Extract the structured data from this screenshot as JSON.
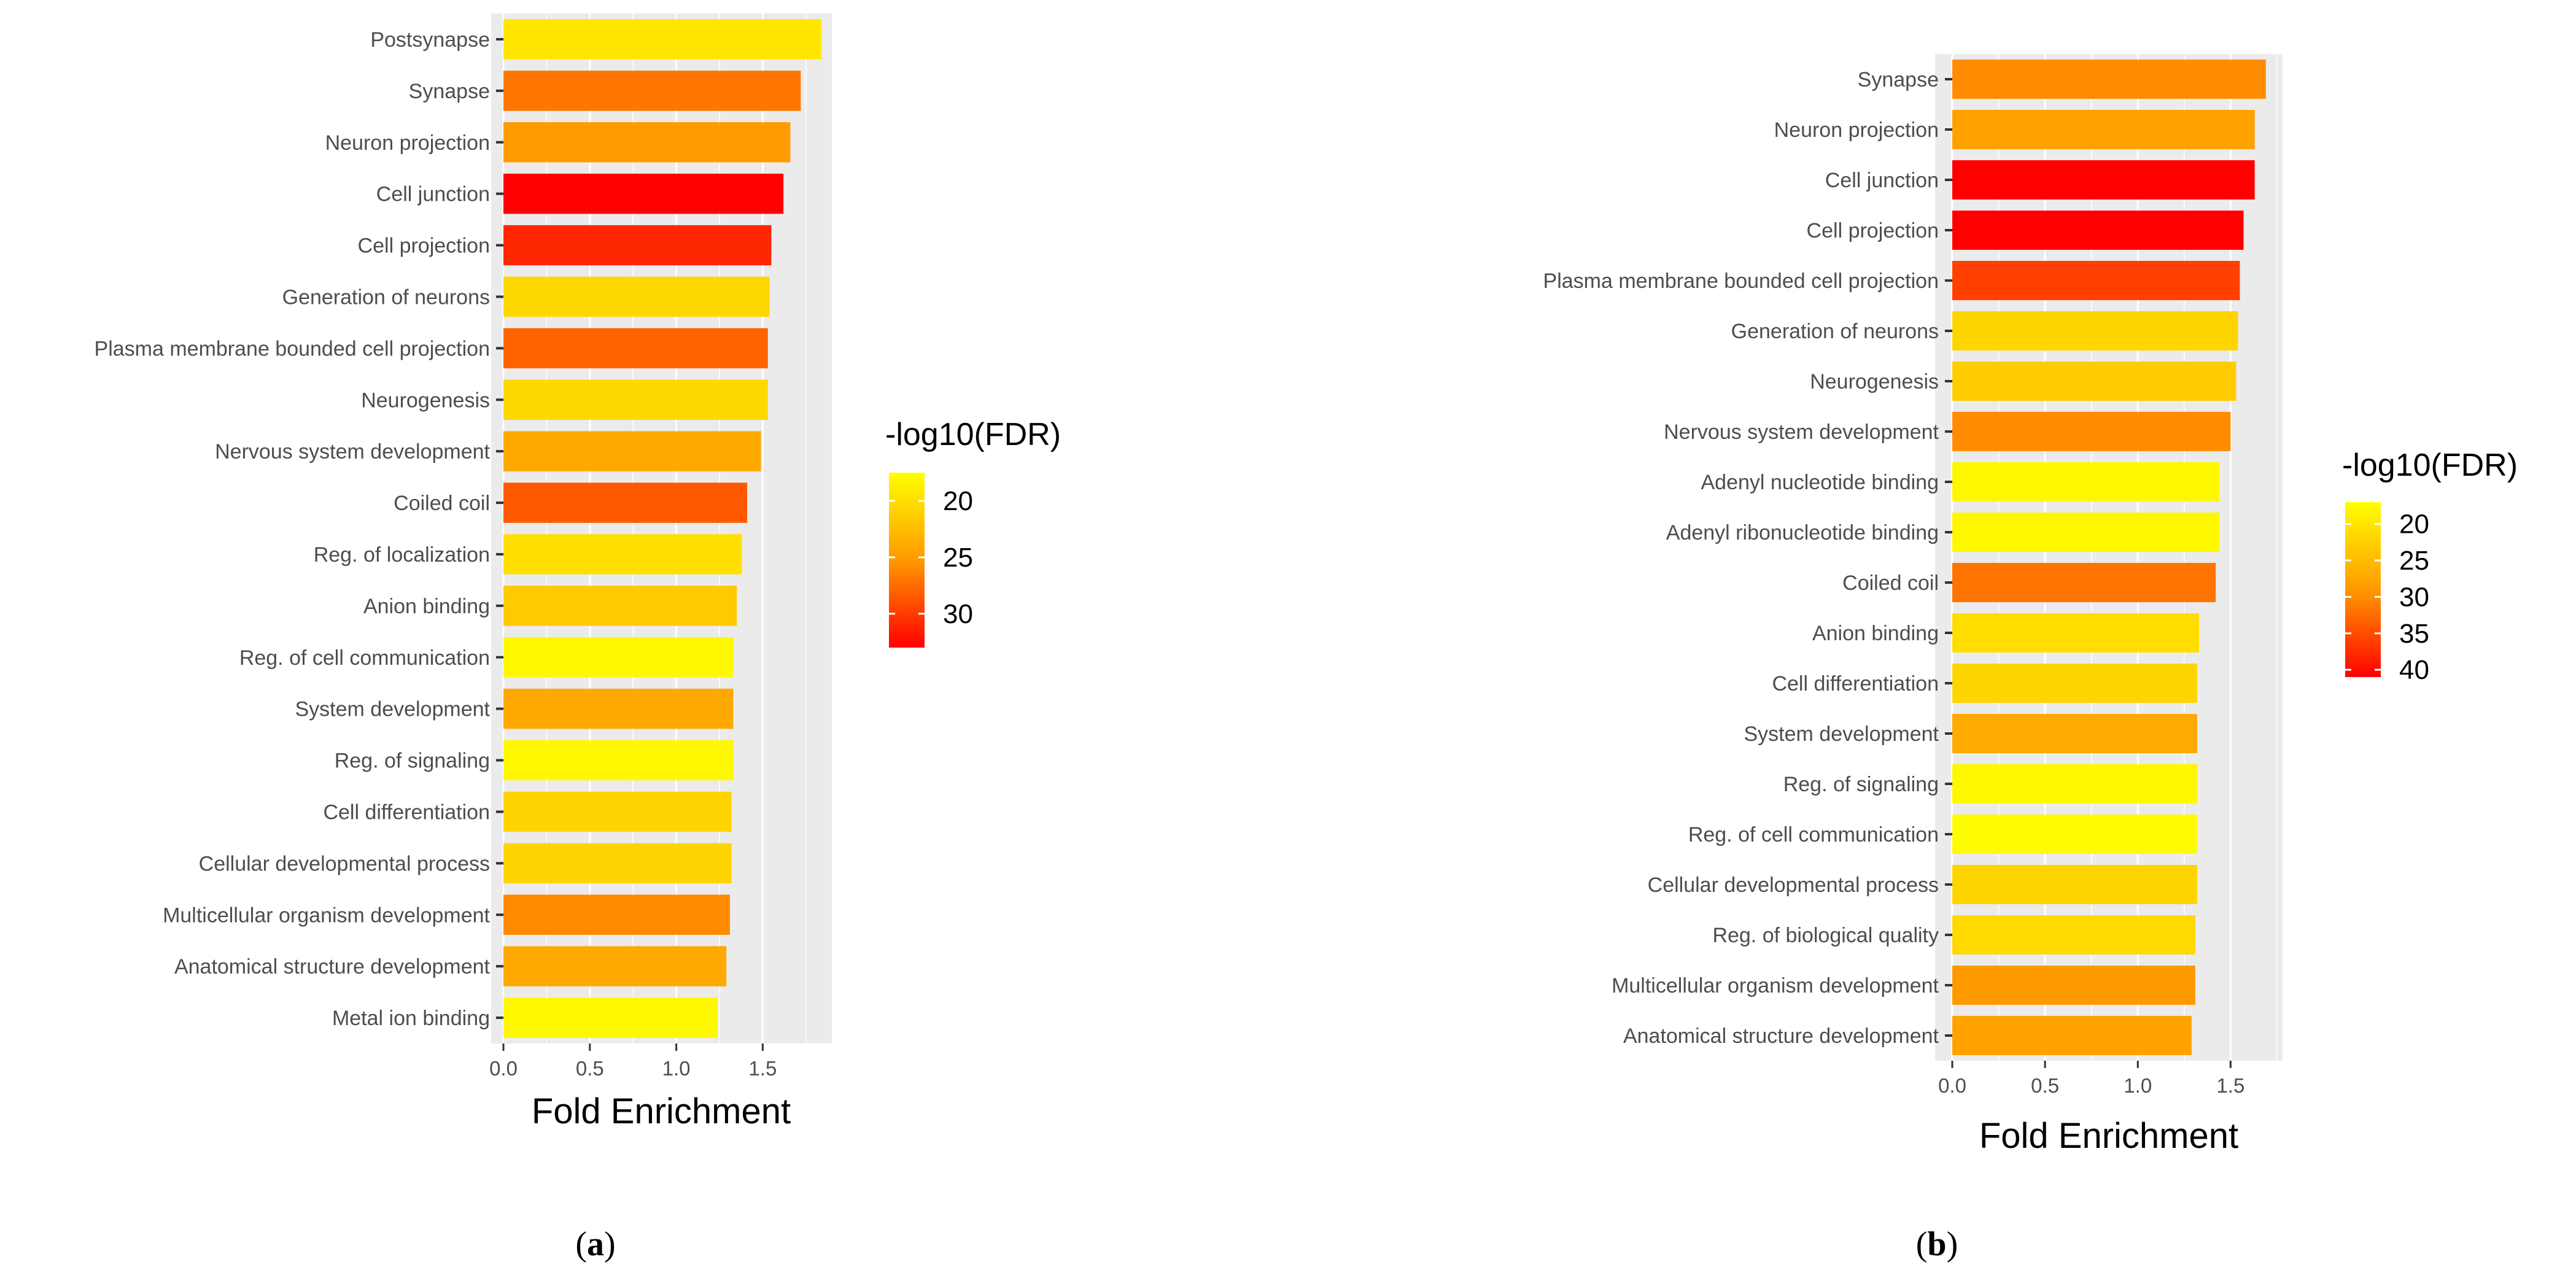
{
  "chart_data": [
    {
      "type": "bar",
      "orientation": "horizontal",
      "panel_label": {
        "open": "(",
        "letter": "a",
        "close": ")"
      },
      "xlabel": "Fold Enrichment",
      "xlim": [
        0,
        1.9
      ],
      "xticks": [
        0.0,
        0.5,
        1.0,
        1.5
      ],
      "xtick_labels": [
        "0.0",
        "0.5",
        "1.0",
        "1.5"
      ],
      "legend": {
        "title": "-log10(FDR)",
        "position": "right",
        "range": [
          17.5,
          33
        ],
        "ticks": [
          20,
          25,
          30
        ],
        "tick_labels": [
          "20",
          "25",
          "30"
        ]
      },
      "categories": [
        "Postsynapse",
        "Synapse",
        "Neuron projection",
        "Cell junction",
        "Cell projection",
        "Generation of neurons",
        "Plasma membrane bounded cell projection",
        "Neurogenesis",
        "Nervous system development",
        "Coiled coil",
        "Reg. of localization",
        "Anion binding",
        "Reg. of cell communication",
        "System development",
        "Reg. of signaling",
        "Cell differentiation",
        "Cellular developmental process",
        "Multicellular organism development",
        "Anatomical structure development",
        "Metal ion binding"
      ],
      "values": [
        1.84,
        1.72,
        1.66,
        1.62,
        1.55,
        1.54,
        1.53,
        1.53,
        1.49,
        1.41,
        1.38,
        1.35,
        1.33,
        1.33,
        1.33,
        1.32,
        1.32,
        1.31,
        1.29,
        1.24
      ],
      "fdr": [
        19.5,
        27.0,
        25.0,
        33.0,
        31.0,
        20.5,
        28.0,
        20.5,
        24.0,
        28.5,
        20.0,
        21.5,
        18.0,
        24.0,
        18.0,
        20.8,
        20.8,
        26.0,
        24.0,
        18.0
      ]
    },
    {
      "type": "bar",
      "orientation": "horizontal",
      "panel_label": {
        "open": "(",
        "letter": "b",
        "close": ")"
      },
      "xlabel": "Fold Enrichment",
      "xlim": [
        0,
        1.78
      ],
      "xticks": [
        0.0,
        0.5,
        1.0,
        1.5
      ],
      "xtick_labels": [
        "0.0",
        "0.5",
        "1.0",
        "1.5"
      ],
      "legend": {
        "title": "-log10(FDR)",
        "position": "right",
        "range": [
          17,
          41
        ],
        "ticks": [
          20,
          25,
          30,
          35,
          40
        ],
        "tick_labels": [
          "20",
          "25",
          "30",
          "35",
          "40"
        ]
      },
      "categories": [
        "Synapse",
        "Neuron projection",
        "Cell junction",
        "Cell projection",
        "Plasma membrane bounded cell projection",
        "Generation of neurons",
        "Neurogenesis",
        "Nervous system development",
        "Adenyl nucleotide binding",
        "Adenyl ribonucleotide binding",
        "Coiled coil",
        "Anion binding",
        "Cell differentiation",
        "System development",
        "Reg. of signaling",
        "Reg. of cell communication",
        "Cellular developmental process",
        "Reg. of biological quality",
        "Multicellular organism development",
        "Anatomical structure development"
      ],
      "values": [
        1.69,
        1.63,
        1.63,
        1.57,
        1.55,
        1.54,
        1.53,
        1.5,
        1.44,
        1.44,
        1.42,
        1.33,
        1.32,
        1.32,
        1.32,
        1.32,
        1.32,
        1.31,
        1.31,
        1.29
      ],
      "fdr": [
        30.0,
        28.0,
        41.0,
        41.0,
        36.0,
        22.0,
        23.0,
        30.0,
        18.0,
        18.0,
        32.0,
        21.0,
        22.0,
        27.0,
        18.0,
        17.5,
        22.0,
        21.5,
        29.0,
        28.0
      ]
    }
  ]
}
